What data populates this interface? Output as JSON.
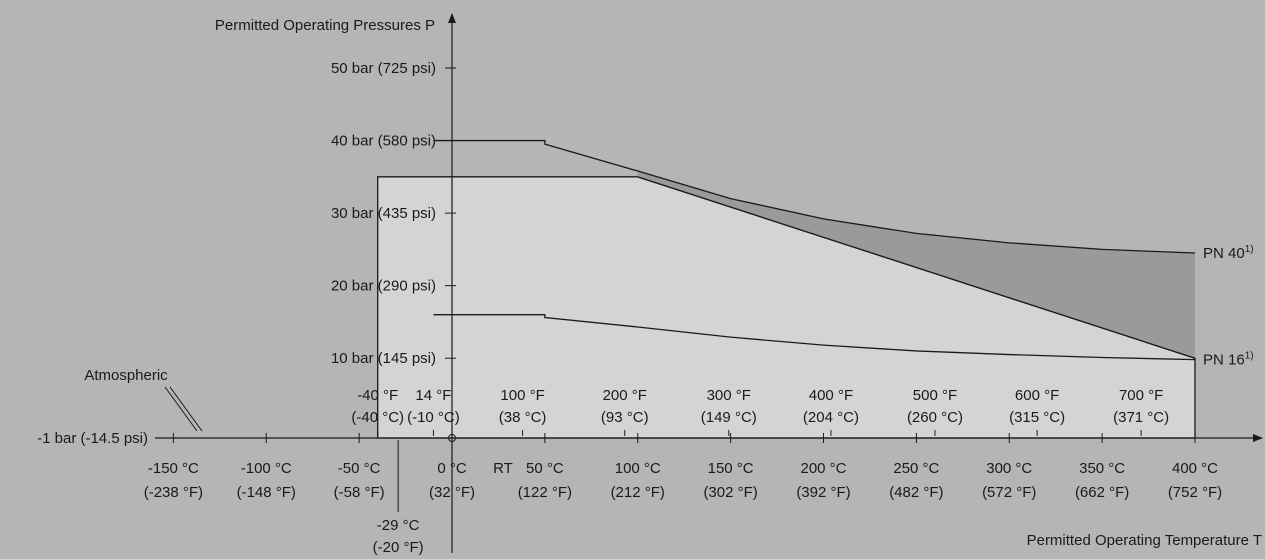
{
  "chart_data": {
    "type": "line",
    "title": "",
    "ylabel": "Permitted Operating Pressures P",
    "xlabel": "Permitted Operating Temperature T",
    "x_unit": "°C",
    "y_unit": "bar",
    "xlim": [
      -175,
      400
    ],
    "ylim": [
      -1,
      53
    ],
    "y_ticks": [
      {
        "value": 50,
        "label": "50 bar (725 psi)"
      },
      {
        "value": 40,
        "label": "40 bar (580 psi)"
      },
      {
        "value": 30,
        "label": "30 bar (435 psi)"
      },
      {
        "value": 20,
        "label": "20 bar (290 psi)"
      },
      {
        "value": 10,
        "label": "10 bar (145 psi)"
      },
      {
        "value": -1,
        "label": "-1 bar (-14.5 psi)"
      }
    ],
    "x_ticks_celsius": [
      {
        "value": -150,
        "label1": "-150 °C",
        "label2": "(-238 °F)"
      },
      {
        "value": -100,
        "label1": "-100 °C",
        "label2": "(-148 °F)"
      },
      {
        "value": -50,
        "label1": "-50 °C",
        "label2": "(-58 °F)"
      },
      {
        "value": 0,
        "label1": "0 °C",
        "label2": "(32 °F)"
      },
      {
        "value": 50,
        "label1": "50 °C",
        "label2": "(122 °F)"
      },
      {
        "value": 100,
        "label1": "100 °C",
        "label2": "(212 °F)"
      },
      {
        "value": 150,
        "label1": "150 °C",
        "label2": "(302 °F)"
      },
      {
        "value": 200,
        "label1": "200 °C",
        "label2": "(392 °F)"
      },
      {
        "value": 250,
        "label1": "250 °C",
        "label2": "(482 °F)"
      },
      {
        "value": 300,
        "label1": "300 °C",
        "label2": "(572 °F)"
      },
      {
        "value": 350,
        "label1": "350 °C",
        "label2": "(662 °F)"
      },
      {
        "value": 400,
        "label1": "400 °C",
        "label2": "(752 °F)"
      }
    ],
    "x_ticks_fahrenheit": [
      {
        "value": -40,
        "label1": "-40 °F",
        "label2": "(-40 °C)"
      },
      {
        "value": -10,
        "label1": "14 °F",
        "label2": "(-10 °C)"
      },
      {
        "value": 38,
        "label1": "100 °F",
        "label2": "(38 °C)"
      },
      {
        "value": 93,
        "label1": "200 °F",
        "label2": "(93 °C)"
      },
      {
        "value": 149,
        "label1": "300 °F",
        "label2": "(149 °C)"
      },
      {
        "value": 204,
        "label1": "400 °F",
        "label2": "(204 °C)"
      },
      {
        "value": 260,
        "label1": "500 °F",
        "label2": "(260 °C)"
      },
      {
        "value": 315,
        "label1": "600 °F",
        "label2": "(315 °C)"
      },
      {
        "value": 371,
        "label1": "700 °F",
        "label2": "(371 °C)"
      }
    ],
    "rt_label": "RT",
    "min_temp_marker": {
      "value": -29,
      "label1": "-29 °C",
      "label2": "(-20 °F)"
    },
    "atmospheric_label": "Atmospheric",
    "permitted_region": {
      "x": [
        -40,
        -40,
        100,
        400,
        400
      ],
      "y": [
        -1,
        35,
        35,
        10,
        -1
      ]
    },
    "series": [
      {
        "name": "PN 40",
        "sup": "1)",
        "x": [
          -10,
          50,
          50,
          100,
          150,
          200,
          250,
          300,
          350,
          400
        ],
        "y": [
          40,
          40,
          39.5,
          35.8,
          32.0,
          29.2,
          27.2,
          25.9,
          25.0,
          24.5
        ]
      },
      {
        "name": "PN 16",
        "sup": "1)",
        "x": [
          -10,
          50,
          50,
          100,
          150,
          200,
          250,
          300,
          350,
          400
        ],
        "y": [
          16,
          16,
          15.6,
          14.3,
          12.9,
          11.8,
          11.0,
          10.5,
          10.1,
          9.8
        ]
      }
    ],
    "colors": {
      "background": "#b5b5b5",
      "permitted_fill": "#d4d4d4",
      "between_fill": "#9a9a9a",
      "line": "#1a1a1a"
    }
  }
}
